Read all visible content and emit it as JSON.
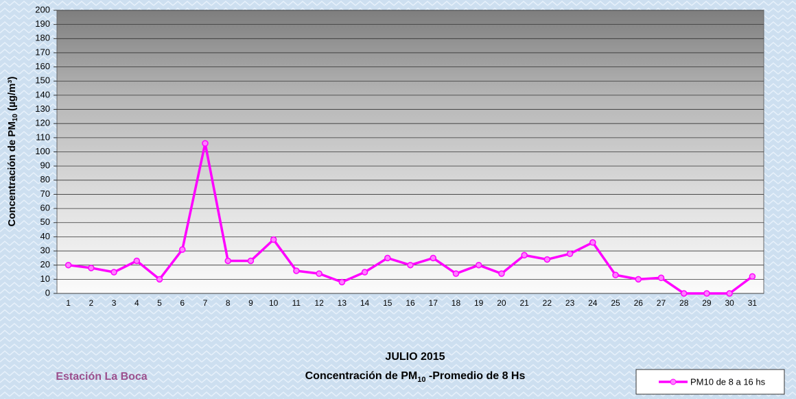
{
  "chart_data": {
    "type": "line",
    "title": "JULIO 2015",
    "subtitle": [
      "Concentración de PM",
      "10",
      " -Promedio de 8 Hs"
    ],
    "ylabel": [
      "Concentración de PM",
      "10",
      " (µg/m³)"
    ],
    "annotation": "Estación La Boca",
    "categories": [
      "1",
      "2",
      "3",
      "4",
      "5",
      "6",
      "7",
      "8",
      "9",
      "10",
      "11",
      "12",
      "13",
      "14",
      "15",
      "16",
      "17",
      "18",
      "19",
      "20",
      "21",
      "22",
      "23",
      "24",
      "25",
      "26",
      "27",
      "28",
      "29",
      "30",
      "31"
    ],
    "series": [
      {
        "name": "PM10 de 8 a 16 hs",
        "color": "#ff00ff",
        "values": [
          20,
          18,
          15,
          23,
          10,
          31,
          106,
          23,
          23,
          38,
          16,
          14,
          8,
          15,
          25,
          20,
          25,
          14,
          20,
          14,
          27,
          24,
          28,
          36,
          13,
          10,
          11,
          0,
          0,
          0,
          12
        ]
      }
    ],
    "ylim": [
      0,
      200
    ],
    "yticks": [
      0,
      10,
      20,
      30,
      40,
      50,
      60,
      70,
      80,
      90,
      100,
      110,
      120,
      130,
      140,
      150,
      160,
      170,
      180,
      190,
      200
    ],
    "grid": true,
    "legend": "bottom-right"
  }
}
